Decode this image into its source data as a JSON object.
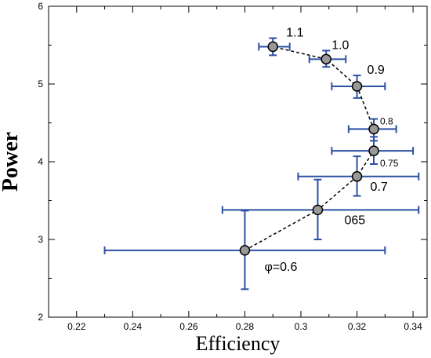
{
  "chart_data": {
    "type": "scatter",
    "xlabel": "Efficiency",
    "ylabel": "Power",
    "xlim": [
      0.21,
      0.345
    ],
    "ylim": [
      2,
      6
    ],
    "x_ticks": [
      "0.22",
      "0.24",
      "0.26",
      "0.28",
      "0.3",
      "0.32",
      "0.34"
    ],
    "x_tick_values": [
      0.22,
      0.24,
      0.26,
      0.28,
      0.3,
      0.32,
      0.34
    ],
    "y_ticks": [
      "2",
      "3",
      "4",
      "5",
      "6"
    ],
    "y_tick_values": [
      2,
      3,
      4,
      5,
      6
    ],
    "grid": false,
    "connect_line": "dashed",
    "marker_color": "#999999",
    "errorbar_color": "#2c4fa3",
    "points": [
      {
        "label": "φ=0.6",
        "x": 0.28,
        "y": 2.86,
        "xerr_low": 0.23,
        "xerr_high": 0.33,
        "yerr_low": 2.36,
        "yerr_high": 3.37
      },
      {
        "label": "065",
        "x": 0.306,
        "y": 3.38,
        "xerr_low": 0.272,
        "xerr_high": 0.342,
        "yerr_low": 3.0,
        "yerr_high": 3.77
      },
      {
        "label": "0.7",
        "x": 0.32,
        "y": 3.81,
        "xerr_low": 0.299,
        "xerr_high": 0.342,
        "yerr_low": 3.56,
        "yerr_high": 4.07
      },
      {
        "label": "0.75",
        "x": 0.326,
        "y": 4.14,
        "xerr_low": 0.311,
        "xerr_high": 0.34,
        "yerr_low": 3.97,
        "yerr_high": 4.32
      },
      {
        "label": "0.8",
        "x": 0.326,
        "y": 4.42,
        "xerr_low": 0.317,
        "xerr_high": 0.334,
        "yerr_low": 4.27,
        "yerr_high": 4.55
      },
      {
        "label": "0.9",
        "x": 0.32,
        "y": 4.97,
        "xerr_low": 0.311,
        "xerr_high": 0.33,
        "yerr_low": 4.82,
        "yerr_high": 5.11
      },
      {
        "label": "1.0",
        "x": 0.309,
        "y": 5.32,
        "xerr_low": 0.303,
        "xerr_high": 0.316,
        "yerr_low": 5.22,
        "yerr_high": 5.43
      },
      {
        "label": "1.1",
        "x": 0.29,
        "y": 5.48,
        "xerr_low": 0.285,
        "xerr_high": 0.296,
        "yerr_low": 5.37,
        "yerr_high": 5.59
      }
    ]
  }
}
